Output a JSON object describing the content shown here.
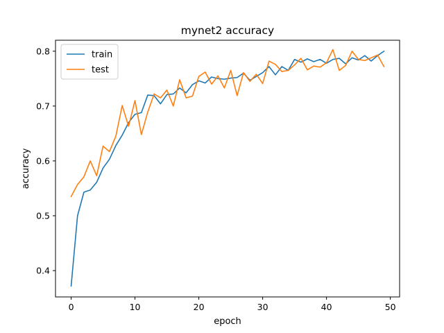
{
  "chart_data": {
    "type": "line",
    "title": "mynet2 accuracy",
    "xlabel": "epoch",
    "ylabel": "accuracy",
    "xlim": [
      -2.45,
      51.45
    ],
    "ylim": [
      0.352,
      0.82
    ],
    "xticks": [
      0,
      10,
      20,
      30,
      40,
      50
    ],
    "yticks": [
      0.4,
      0.5,
      0.6,
      0.7,
      0.8
    ],
    "grid": false,
    "legend_position": "upper-left",
    "x": [
      0,
      1,
      2,
      3,
      4,
      5,
      6,
      7,
      8,
      9,
      10,
      11,
      12,
      13,
      14,
      15,
      16,
      17,
      18,
      19,
      20,
      21,
      22,
      23,
      24,
      25,
      26,
      27,
      28,
      29,
      30,
      31,
      32,
      33,
      34,
      35,
      36,
      37,
      38,
      39,
      40,
      41,
      42,
      43,
      44,
      45,
      46,
      47,
      48,
      49
    ],
    "series": [
      {
        "name": "train",
        "color": "#1f77b4",
        "values": [
          0.372,
          0.5,
          0.543,
          0.547,
          0.561,
          0.587,
          0.603,
          0.628,
          0.647,
          0.67,
          0.685,
          0.688,
          0.72,
          0.719,
          0.704,
          0.721,
          0.722,
          0.733,
          0.724,
          0.739,
          0.746,
          0.742,
          0.753,
          0.75,
          0.749,
          0.751,
          0.752,
          0.76,
          0.747,
          0.754,
          0.761,
          0.772,
          0.757,
          0.772,
          0.765,
          0.785,
          0.78,
          0.786,
          0.781,
          0.785,
          0.778,
          0.785,
          0.787,
          0.777,
          0.788,
          0.784,
          0.792,
          0.782,
          0.792,
          0.8
        ]
      },
      {
        "name": "test",
        "color": "#ff7f0e",
        "values": [
          0.535,
          0.557,
          0.571,
          0.6,
          0.573,
          0.627,
          0.617,
          0.645,
          0.701,
          0.663,
          0.71,
          0.648,
          0.689,
          0.722,
          0.715,
          0.729,
          0.7,
          0.748,
          0.715,
          0.718,
          0.754,
          0.762,
          0.74,
          0.755,
          0.733,
          0.765,
          0.719,
          0.761,
          0.745,
          0.758,
          0.741,
          0.782,
          0.776,
          0.763,
          0.765,
          0.775,
          0.787,
          0.766,
          0.773,
          0.771,
          0.779,
          0.803,
          0.765,
          0.774,
          0.8,
          0.785,
          0.783,
          0.788,
          0.793,
          0.772
        ]
      }
    ]
  }
}
